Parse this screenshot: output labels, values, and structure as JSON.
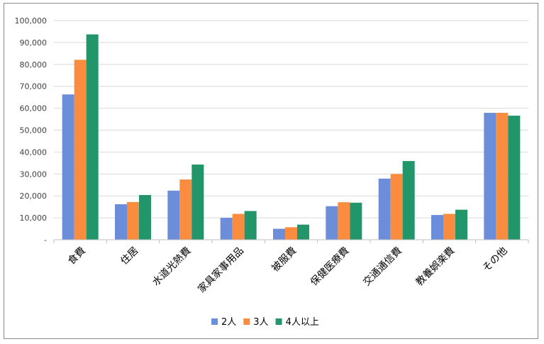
{
  "chart_data": {
    "type": "bar",
    "title": "",
    "xlabel": "",
    "ylabel": "",
    "ylim": [
      0,
      100000
    ],
    "y_ticks": [
      "-",
      "10,000",
      "20,000",
      "30,000",
      "40,000",
      "50,000",
      "60,000",
      "70,000",
      "80,000",
      "90,000",
      "100,000"
    ],
    "grid": true,
    "legend_position": "bottom",
    "categories": [
      "食費",
      "住居",
      "水道光熱費",
      "家具家事用品",
      "被服費",
      "保健医療費",
      "交通通信費",
      "教養娯楽費",
      "その他"
    ],
    "series": [
      {
        "name": "2人",
        "color": "#6c8dd9",
        "values": [
          66300,
          16200,
          22400,
          10000,
          5000,
          15300,
          27900,
          11300,
          57900
        ]
      },
      {
        "name": "3人",
        "color": "#f98c3e",
        "values": [
          82100,
          17200,
          27500,
          11800,
          5700,
          17100,
          30000,
          11800,
          57900
        ]
      },
      {
        "name": "4人以上",
        "color": "#22956a",
        "values": [
          93700,
          20400,
          34300,
          13100,
          6900,
          16900,
          35900,
          13700,
          56600
        ]
      }
    ]
  }
}
